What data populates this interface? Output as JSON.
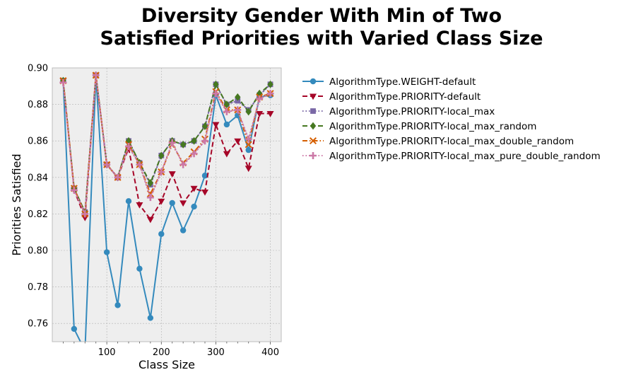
{
  "chart_data": {
    "type": "line",
    "title_lines": [
      "Diversity Gender With Min of Two",
      "Satisfied Priorities with Varied Class Size"
    ],
    "xlabel": "Class Size",
    "ylabel": "Priorities Satisfied",
    "xlim": [
      0,
      420
    ],
    "ylim": [
      0.75,
      0.9
    ],
    "xticks": [
      100,
      200,
      300,
      400
    ],
    "yticks": [
      0.76,
      0.78,
      0.8,
      0.82,
      0.84,
      0.86,
      0.88,
      0.9
    ],
    "xtick_labels": [
      "100",
      "200",
      "300",
      "400"
    ],
    "ytick_labels": [
      "0.76",
      "0.78",
      "0.80",
      "0.82",
      "0.84",
      "0.86",
      "0.88",
      "0.90"
    ],
    "grid": true,
    "legend_position": "outside-right",
    "x": [
      20,
      40,
      60,
      80,
      100,
      120,
      140,
      160,
      180,
      200,
      220,
      240,
      260,
      280,
      300,
      320,
      340,
      360,
      380,
      400
    ],
    "series": [
      {
        "name": "AlgorithmType.WEIGHT-default",
        "color": "#348abd",
        "dash": "solid",
        "marker": "circle",
        "values": [
          0.893,
          0.757,
          0.745,
          0.896,
          0.799,
          0.77,
          0.827,
          0.79,
          0.763,
          0.809,
          0.826,
          0.811,
          0.824,
          0.841,
          0.885,
          0.869,
          0.874,
          0.855,
          0.884,
          0.885
        ]
      },
      {
        "name": "AlgorithmType.PRIORITY-default",
        "color": "#a60628",
        "dash": "dashed",
        "marker": "triangle-down",
        "values": [
          0.893,
          0.833,
          0.818,
          0.896,
          0.847,
          0.84,
          0.856,
          0.825,
          0.817,
          0.827,
          0.842,
          0.826,
          0.834,
          0.832,
          0.869,
          0.853,
          0.86,
          0.845,
          0.875,
          0.875
        ]
      },
      {
        "name": "AlgorithmType.PRIORITY-local_max",
        "color": "#7a68a6",
        "dash": "dotted",
        "marker": "square",
        "values": [
          0.893,
          0.834,
          0.821,
          0.896,
          0.847,
          0.84,
          0.86,
          0.848,
          0.836,
          0.852,
          0.86,
          0.858,
          0.86,
          0.868,
          0.891,
          0.88,
          0.882,
          0.877,
          0.885,
          0.891
        ]
      },
      {
        "name": "AlgorithmType.PRIORITY-local_max_random",
        "color": "#467821",
        "dash": "dashed",
        "marker": "diamond",
        "values": [
          0.893,
          0.834,
          0.821,
          0.896,
          0.847,
          0.84,
          0.86,
          0.848,
          0.837,
          0.852,
          0.86,
          0.858,
          0.86,
          0.868,
          0.891,
          0.88,
          0.884,
          0.876,
          0.886,
          0.891
        ]
      },
      {
        "name": "AlgorithmType.PRIORITY-local_max_double_random",
        "color": "#d55e00",
        "dash": "dashdot",
        "marker": "x",
        "values": [
          0.893,
          0.834,
          0.82,
          0.896,
          0.847,
          0.84,
          0.858,
          0.847,
          0.831,
          0.843,
          0.858,
          0.848,
          0.854,
          0.861,
          0.887,
          0.877,
          0.877,
          0.858,
          0.884,
          0.886
        ]
      },
      {
        "name": "AlgorithmType.PRIORITY-local_max_pure_double_random",
        "color": "#cc79a7",
        "dash": "dotted",
        "marker": "plus",
        "values": [
          0.892,
          0.833,
          0.82,
          0.896,
          0.847,
          0.84,
          0.857,
          0.847,
          0.829,
          0.843,
          0.859,
          0.847,
          0.853,
          0.86,
          0.886,
          0.876,
          0.877,
          0.861,
          0.883,
          0.886
        ]
      }
    ]
  }
}
